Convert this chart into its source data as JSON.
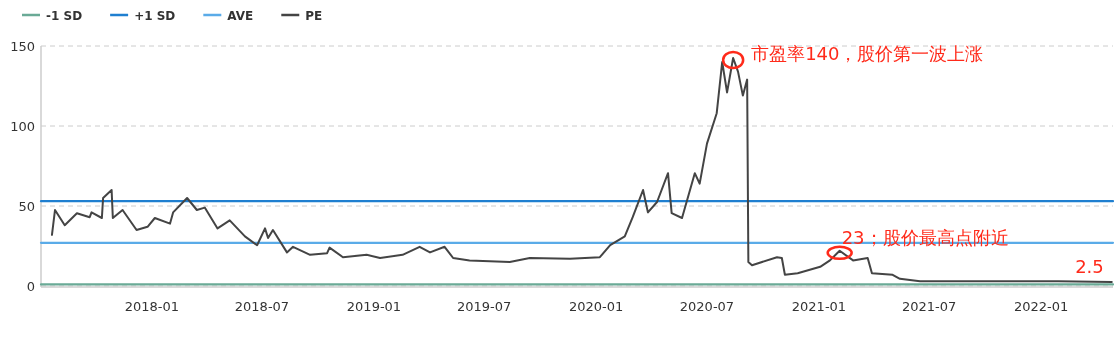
{
  "chart_data": {
    "type": "line",
    "xlim": [
      "2017-07-03",
      "2022-04-29"
    ],
    "ylim": [
      0,
      150
    ],
    "yticks": [
      0,
      50,
      100,
      150
    ],
    "xticks": [
      {
        "value": "2018-01-01",
        "label": "2018-01"
      },
      {
        "value": "2018-07-01",
        "label": "2018-07"
      },
      {
        "value": "2019-01-01",
        "label": "2019-01"
      },
      {
        "value": "2019-07-01",
        "label": "2019-07"
      },
      {
        "value": "2020-01-01",
        "label": "2020-01"
      },
      {
        "value": "2020-07-01",
        "label": "2020-07"
      },
      {
        "value": "2021-01-01",
        "label": "2021-01"
      },
      {
        "value": "2021-07-01",
        "label": "2021-07"
      },
      {
        "value": "2022-01-01",
        "label": "2022-01"
      }
    ],
    "grid": "y",
    "legend": "top left",
    "marker": "none",
    "line_style": "solid",
    "series": [
      {
        "name": "-1 SD",
        "color": "#6aaa96",
        "x": [
          "2017-07-03",
          "2022-04-29"
        ],
        "values": [
          1,
          1
        ]
      },
      {
        "name": "+1 SD",
        "color": "#1f7fd0",
        "x": [
          "2017-07-03",
          "2022-04-29"
        ],
        "values": [
          53,
          53
        ]
      },
      {
        "name": "AVE",
        "color": "#5aabe8",
        "x": [
          "2017-07-03",
          "2022-04-29"
        ],
        "values": [
          27,
          27
        ]
      },
      {
        "name": "PE",
        "color": "#444444",
        "x": [
          "2017-07-21",
          "2017-07-26",
          "2017-08-11",
          "2017-08-31",
          "2017-09-21",
          "2017-09-24",
          "2017-10-11",
          "2017-10-13",
          "2017-10-27",
          "2017-10-29",
          "2017-11-14",
          "2017-12-07",
          "2017-12-25",
          "2018-01-06",
          "2018-01-31",
          "2018-02-05",
          "2018-02-28",
          "2018-03-16",
          "2018-03-29",
          "2018-04-19",
          "2018-05-09",
          "2018-06-03",
          "2018-06-23",
          "2018-07-06",
          "2018-07-11",
          "2018-07-19",
          "2018-08-11",
          "2018-08-21",
          "2018-09-18",
          "2018-10-16",
          "2018-10-20",
          "2018-11-11",
          "2018-12-20",
          "2019-01-11",
          "2019-02-17",
          "2019-03-17",
          "2019-04-03",
          "2019-04-27",
          "2019-05-11",
          "2019-06-07",
          "2019-08-12",
          "2019-09-14",
          "2019-11-19",
          "2020-01-07",
          "2020-01-24",
          "2020-02-17",
          "2020-03-01",
          "2020-03-18",
          "2020-03-26",
          "2020-04-10",
          "2020-04-28",
          "2020-05-04",
          "2020-05-21",
          "2020-06-11",
          "2020-06-19",
          "2020-07-01",
          "2020-07-17",
          "2020-07-26",
          "2020-08-03",
          "2020-08-13",
          "2020-08-21",
          "2020-08-29",
          "2020-09-05",
          "2020-09-07",
          "2020-09-13",
          "2020-10-24",
          "2020-11-01",
          "2020-11-06",
          "2020-11-27",
          "2021-01-03",
          "2021-01-19",
          "2021-02-04",
          "2021-02-26",
          "2021-03-22",
          "2021-03-29",
          "2021-05-02",
          "2021-05-14",
          "2021-06-16",
          "2021-09-11",
          "2022-01-29",
          "2022-04-27"
        ],
        "values": [
          32,
          47.5,
          38,
          45.5,
          43,
          46,
          42.5,
          55,
          60,
          42.5,
          47.5,
          35,
          37,
          42.5,
          39,
          46,
          55,
          47.5,
          49,
          36,
          41,
          31,
          25.5,
          36,
          30,
          35,
          21,
          24.5,
          19.5,
          20.5,
          24,
          18,
          19.5,
          17.5,
          19.5,
          24.5,
          21,
          24.5,
          17.5,
          16,
          15,
          17.5,
          17,
          18,
          25.5,
          31,
          43,
          60,
          46,
          52.5,
          70.5,
          45.5,
          42.5,
          70.5,
          64,
          89,
          108,
          140,
          121,
          142.5,
          134,
          119,
          129,
          15,
          13,
          18,
          17.5,
          7,
          8,
          12,
          16,
          22,
          16,
          17.5,
          8,
          7,
          4.5,
          3,
          3,
          3,
          2.5
        ]
      }
    ],
    "annotations": [
      {
        "text": "市盈率140，股价第一波上涨",
        "x": "2020-08-13",
        "y": 142.5
      },
      {
        "text": "23；股价最高点附近",
        "x": "2021-02-04",
        "y": 22
      },
      {
        "text": "2.5",
        "x": "2022-04-27",
        "y": 2.5
      }
    ]
  }
}
